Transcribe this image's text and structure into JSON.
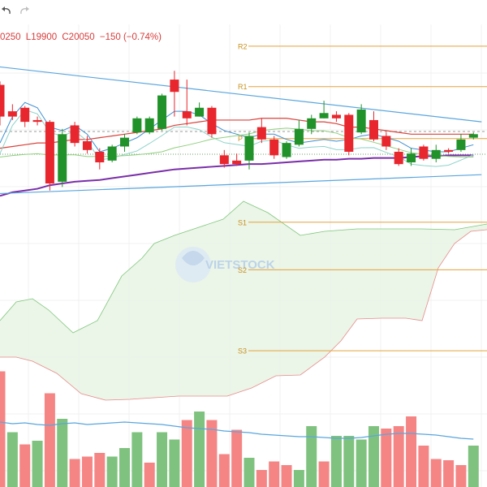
{
  "toolbar": {
    "undo_icon": "undo-icon",
    "redo_icon": "redo-icon"
  },
  "legend": {
    "high": "0250",
    "low": "L19900",
    "close": "C20050",
    "change": "−150 (−0.74%)"
  },
  "watermark": {
    "brand": "VIETSTOCK"
  },
  "colors": {
    "up": "#21922a",
    "down": "#e8262d",
    "vol_up": "#7fc27f",
    "vol_down": "#f58585",
    "pivot": "#e3a33b",
    "trendline": "#5aa6dd",
    "ma_purple": "#7a2ea8",
    "ma_red": "#d9423b",
    "cloud_fill": "#e9f4e6",
    "cloud_green_line": "#7ec87a",
    "cloud_red_line": "#e88a8a"
  },
  "chart_data": {
    "type": "candlestick",
    "price_range": [
      18150,
      20750
    ],
    "pivots": [
      {
        "name": "R2",
        "value": 20700
      },
      {
        "name": "R1",
        "value": 20470
      },
      {
        "name": "P",
        "value": 20175
      },
      {
        "name": "S1",
        "value": 19700
      },
      {
        "name": "S2",
        "value": 19430
      },
      {
        "name": "S3",
        "value": 18970
      }
    ],
    "candles": [
      {
        "o": 20480,
        "h": 20500,
        "c": 20300,
        "l": 20250
      },
      {
        "o": 20330,
        "h": 20370,
        "c": 20300,
        "l": 20280
      },
      {
        "o": 20350,
        "h": 20360,
        "c": 20270,
        "l": 20240
      },
      {
        "o": 20280,
        "h": 20300,
        "c": 20270,
        "l": 20250
      },
      {
        "o": 20270,
        "h": 20280,
        "c": 19920,
        "l": 19880
      },
      {
        "o": 19930,
        "h": 20230,
        "c": 20200,
        "l": 19900
      },
      {
        "o": 20250,
        "h": 20270,
        "c": 20150,
        "l": 20130
      },
      {
        "o": 20160,
        "h": 20190,
        "c": 20110,
        "l": 20090
      },
      {
        "o": 20100,
        "h": 20120,
        "c": 20040,
        "l": 20000
      },
      {
        "o": 20050,
        "h": 20140,
        "c": 20130,
        "l": 20040
      },
      {
        "o": 20130,
        "h": 20200,
        "c": 20180,
        "l": 20100
      },
      {
        "o": 20210,
        "h": 20300,
        "c": 20290,
        "l": 20200
      },
      {
        "o": 20210,
        "h": 20300,
        "c": 20290,
        "l": 20200
      },
      {
        "o": 20230,
        "h": 20430,
        "c": 20420,
        "l": 20220
      },
      {
        "o": 20510,
        "h": 20560,
        "c": 20440,
        "l": 20300
      },
      {
        "o": 20330,
        "h": 20510,
        "c": 20290,
        "l": 20250
      },
      {
        "o": 20300,
        "h": 20380,
        "c": 20350,
        "l": 20300
      },
      {
        "o": 20350,
        "h": 20360,
        "c": 20200,
        "l": 20180
      },
      {
        "o": 20080,
        "h": 20110,
        "c": 20030,
        "l": 20010
      },
      {
        "o": 20050,
        "h": 20090,
        "c": 20030,
        "l": 20020
      },
      {
        "o": 20050,
        "h": 20210,
        "c": 20190,
        "l": 20000
      },
      {
        "o": 20240,
        "h": 20290,
        "c": 20170,
        "l": 20150
      },
      {
        "o": 20170,
        "h": 20190,
        "c": 20080,
        "l": 20060
      },
      {
        "o": 20070,
        "h": 20160,
        "c": 20150,
        "l": 20060
      },
      {
        "o": 20140,
        "h": 20280,
        "c": 20230,
        "l": 20130
      },
      {
        "o": 20230,
        "h": 20310,
        "c": 20290,
        "l": 20200
      },
      {
        "o": 20290,
        "h": 20390,
        "c": 20320,
        "l": 20290
      },
      {
        "o": 20310,
        "h": 20330,
        "c": 20290,
        "l": 20270
      },
      {
        "o": 20310,
        "h": 20320,
        "c": 20100,
        "l": 20080
      },
      {
        "o": 20210,
        "h": 20370,
        "c": 20340,
        "l": 20200
      },
      {
        "o": 20280,
        "h": 20330,
        "c": 20170,
        "l": 20160
      },
      {
        "o": 20190,
        "h": 20210,
        "c": 20130,
        "l": 20110
      },
      {
        "o": 20100,
        "h": 20120,
        "c": 20030,
        "l": 20020
      },
      {
        "o": 20040,
        "h": 20120,
        "c": 20090,
        "l": 20020
      },
      {
        "o": 20130,
        "h": 20140,
        "c": 20060,
        "l": 20050
      },
      {
        "o": 20060,
        "h": 20140,
        "c": 20110,
        "l": 20040
      },
      {
        "o": 20110,
        "h": 20120,
        "c": 20100,
        "l": 20090
      },
      {
        "o": 20110,
        "h": 20200,
        "c": 20170,
        "l": 20100
      },
      {
        "o": 20180,
        "h": 20210,
        "c": 20200,
        "l": 20170
      }
    ],
    "volume": [
      {
        "v": 0.95,
        "up": false
      },
      {
        "v": 0.45,
        "up": true
      },
      {
        "v": 0.35,
        "up": false
      },
      {
        "v": 0.38,
        "up": true
      },
      {
        "v": 0.77,
        "up": false
      },
      {
        "v": 0.56,
        "up": true
      },
      {
        "v": 0.23,
        "up": false
      },
      {
        "v": 0.25,
        "up": false
      },
      {
        "v": 0.28,
        "up": false
      },
      {
        "v": 0.25,
        "up": true
      },
      {
        "v": 0.32,
        "up": true
      },
      {
        "v": 0.45,
        "up": true
      },
      {
        "v": 0.2,
        "up": false
      },
      {
        "v": 0.45,
        "up": true
      },
      {
        "v": 0.39,
        "up": true
      },
      {
        "v": 0.55,
        "up": false
      },
      {
        "v": 0.62,
        "up": true
      },
      {
        "v": 0.55,
        "up": false
      },
      {
        "v": 0.27,
        "up": false
      },
      {
        "v": 0.47,
        "up": false
      },
      {
        "v": 0.24,
        "up": true
      },
      {
        "v": 0.14,
        "up": false
      },
      {
        "v": 0.21,
        "up": false
      },
      {
        "v": 0.18,
        "up": false
      },
      {
        "v": 0.14,
        "up": true
      },
      {
        "v": 0.5,
        "up": true
      },
      {
        "v": 0.21,
        "up": false
      },
      {
        "v": 0.42,
        "up": true
      },
      {
        "v": 0.42,
        "up": true
      },
      {
        "v": 0.39,
        "up": true
      },
      {
        "v": 0.5,
        "up": true
      },
      {
        "v": 0.48,
        "up": false
      },
      {
        "v": 0.5,
        "up": false
      },
      {
        "v": 0.58,
        "up": false
      },
      {
        "v": 0.34,
        "up": false
      },
      {
        "v": 0.23,
        "up": false
      },
      {
        "v": 0.22,
        "up": false
      },
      {
        "v": 0.18,
        "up": false
      },
      {
        "v": 0.34,
        "up": true
      }
    ],
    "ma_red": [
      20120,
      20130,
      20140,
      20150,
      20150,
      20160,
      20170,
      20170,
      20180,
      20190,
      20200,
      20210,
      20220,
      20230,
      20250,
      20260,
      20270,
      20280,
      20280,
      20280,
      20280,
      20290,
      20290,
      20290,
      20280,
      20270,
      20270,
      20260,
      20240,
      20240,
      20230,
      20220,
      20210,
      20200,
      20200,
      20200,
      20200,
      20200,
      20200
    ],
    "ma_blue": [
      20150,
      20300,
      20380,
      20350,
      20240,
      20220,
      20250,
      20200,
      20100,
      20120,
      20150,
      20180,
      20230,
      20280,
      20330,
      20330,
      20310,
      20260,
      20220,
      20200,
      20180,
      20200,
      20200,
      20170,
      20150,
      20160,
      20170,
      20160,
      20170,
      20190,
      20200,
      20180,
      20160,
      20120,
      20110,
      20100,
      20100,
      20120,
      20140
    ],
    "ma_purple": [
      19850,
      19870,
      19880,
      19890,
      19910,
      19920,
      19930,
      19935,
      19940,
      19950,
      19960,
      19970,
      19980,
      19990,
      20000,
      20005,
      20010,
      20015,
      20020,
      20025,
      20030,
      20030,
      20035,
      20040,
      20045,
      20050,
      20055,
      20055,
      20060,
      20060,
      20065,
      20065,
      20065,
      20070,
      20075,
      20075,
      20080,
      20080,
      20080
    ],
    "trendline_upper": [
      {
        "i": -1,
        "p": 20590
      },
      {
        "i": 38,
        "p": 20270
      }
    ],
    "trendline_lower": [
      {
        "i": -1,
        "p": 19860
      },
      {
        "i": 38,
        "p": 19970
      }
    ]
  }
}
